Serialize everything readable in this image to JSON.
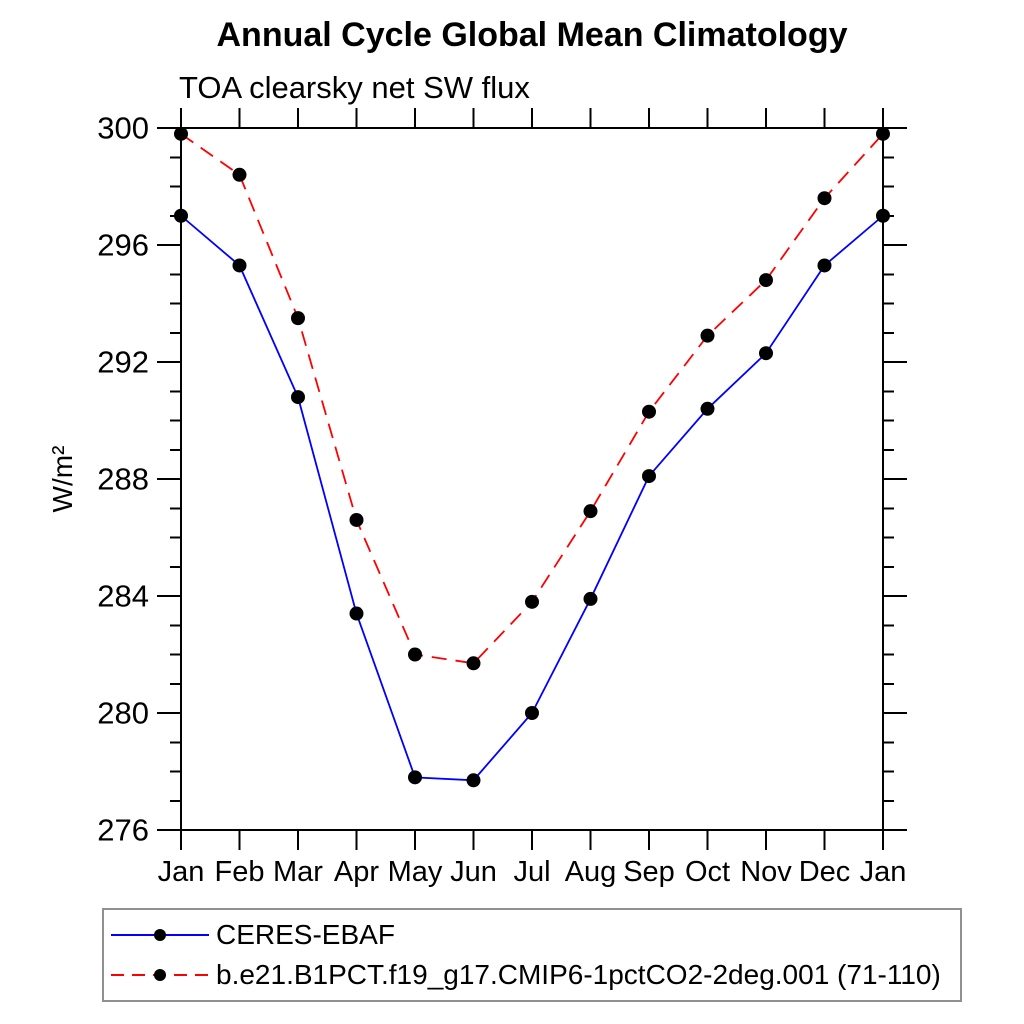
{
  "chart_data": {
    "type": "line",
    "title": "Annual Cycle Global Mean Climatology",
    "subtitle": "TOA clearsky net SW flux",
    "ylabel": "W/m²",
    "xlabel": "",
    "categories": [
      "Jan",
      "Feb",
      "Mar",
      "Apr",
      "May",
      "Jun",
      "Jul",
      "Aug",
      "Sep",
      "Oct",
      "Nov",
      "Dec",
      "Jan"
    ],
    "ylim": [
      276,
      300
    ],
    "ytick_major_step": 4,
    "ytick_minor_step": 1,
    "ytick_labels": [
      "276",
      "280",
      "284",
      "288",
      "292",
      "296",
      "300"
    ],
    "grid": false,
    "legend_position": "bottom-left-box",
    "series": [
      {
        "name": "CERES-EBAF",
        "color": "#0000ff",
        "line_style": "solid",
        "marker": "filled-circle",
        "marker_color": "#000000",
        "values": [
          297.0,
          295.3,
          290.8,
          283.4,
          277.8,
          277.7,
          280.0,
          283.9,
          288.1,
          290.4,
          292.3,
          295.3,
          297.0
        ]
      },
      {
        "name": "b.e21.B1PCT.f19_g17.CMIP6-1pctCO2-2deg.001 (71-110)",
        "color": "#ff0000",
        "line_style": "dashed",
        "marker": "filled-circle",
        "marker_color": "#000000",
        "values": [
          299.8,
          298.4,
          293.5,
          286.6,
          282.0,
          281.7,
          283.8,
          286.9,
          290.3,
          292.9,
          294.8,
          297.6,
          299.8
        ]
      }
    ]
  },
  "colors": {
    "axis": "#000000",
    "background": "#ffffff",
    "legend_border": "#909090",
    "text": "#000000"
  }
}
